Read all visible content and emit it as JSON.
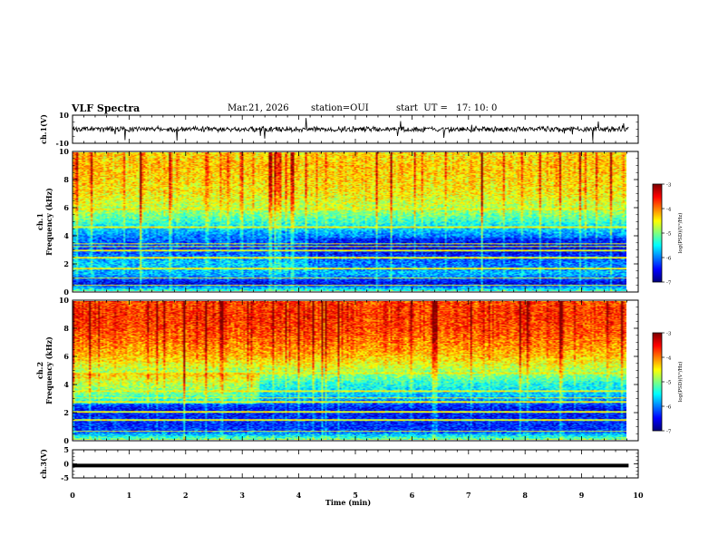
{
  "header": {
    "title": "VLF Spectra",
    "date": "Mar.21, 2026",
    "station": "station=OUI",
    "start_ut": "start  UT =   17: 10: 0"
  },
  "chart_data": [
    {
      "type": "line",
      "panel": "ch1-waveform",
      "ylabel": "ch.1(V)",
      "ylim": [
        -10,
        10
      ],
      "y_ticks": [
        "10",
        "-10"
      ],
      "x_range_min": [
        0,
        9.83
      ],
      "trace": "noise waveform centered near 0 V, amplitude about +/-2 V with sparse spikes",
      "color": "#000000"
    },
    {
      "type": "heatmap",
      "panel": "ch1-spectrogram",
      "ylabel": "Frequency (kHz)",
      "channel_label": "ch.1",
      "ylim": [
        0,
        10
      ],
      "y_ticks": [
        "0",
        "2",
        "4",
        "6",
        "8",
        "10"
      ],
      "x_range_min": [
        0,
        9.83
      ],
      "colorbar": {
        "label": "log(PSD)(V²/Hz)",
        "ticks": [
          "-3",
          "-4",
          "-5",
          "-6",
          "-7"
        ],
        "range": [
          -7,
          -3
        ]
      },
      "level_profile": [
        {
          "f_khz": 0.0,
          "log_psd": -5.3
        },
        {
          "f_khz": 0.5,
          "log_psd": -6.6
        },
        {
          "f_khz": 1.2,
          "log_psd": -5.8
        },
        {
          "f_khz": 2.0,
          "log_psd": -5.7
        },
        {
          "f_khz": 3.0,
          "log_psd": -6.3
        },
        {
          "f_khz": 4.0,
          "log_psd": -6.0
        },
        {
          "f_khz": 5.0,
          "log_psd": -5.3
        },
        {
          "f_khz": 6.0,
          "log_psd": -4.8
        },
        {
          "f_khz": 7.0,
          "log_psd": -4.5
        },
        {
          "f_khz": 8.0,
          "log_psd": -4.4
        },
        {
          "f_khz": 9.0,
          "log_psd": -4.3
        },
        {
          "f_khz": 10.0,
          "log_psd": -4.4
        }
      ],
      "lines_khz": [
        0.4,
        0.9,
        1.6,
        2.4,
        2.9,
        3.2,
        3.4,
        4.6,
        5.9
      ]
    },
    {
      "type": "heatmap",
      "panel": "ch2-spectrogram",
      "ylabel": "Frequency (kHz)",
      "channel_label": "ch.2",
      "ylim": [
        0,
        10
      ],
      "y_ticks": [
        "0",
        "2",
        "4",
        "6",
        "8",
        "10"
      ],
      "x_range_min": [
        0,
        9.83
      ],
      "colorbar": {
        "label": "log(PSD)(V²/Hz)",
        "ticks": [
          "-3",
          "-4",
          "-5",
          "-6",
          "-7"
        ],
        "range": [
          -7,
          -3
        ]
      },
      "level_profile": [
        {
          "f_khz": 0.0,
          "log_psd": -5.0
        },
        {
          "f_khz": 0.6,
          "log_psd": -6.3
        },
        {
          "f_khz": 1.5,
          "log_psd": -6.4
        },
        {
          "f_khz": 2.2,
          "log_psd": -6.5
        },
        {
          "f_khz": 3.0,
          "log_psd": -5.8
        },
        {
          "f_khz": 4.0,
          "log_psd": -5.4
        },
        {
          "f_khz": 5.0,
          "log_psd": -4.8
        },
        {
          "f_khz": 6.0,
          "log_psd": -4.3
        },
        {
          "f_khz": 7.0,
          "log_psd": -4.0
        },
        {
          "f_khz": 8.0,
          "log_psd": -3.8
        },
        {
          "f_khz": 9.0,
          "log_psd": -3.7
        },
        {
          "f_khz": 10.0,
          "log_psd": -3.8
        }
      ],
      "lines_khz": [
        0.6,
        1.4,
        2.0,
        2.7,
        3.0,
        3.5,
        4.8
      ]
    },
    {
      "type": "line",
      "panel": "ch3-waveform",
      "ylabel": "ch.3(V)",
      "xlabel": "Time (min)",
      "ylim": [
        -5,
        5
      ],
      "y_ticks": [
        "5",
        "0",
        "-5"
      ],
      "x_range_min": [
        0,
        9.83
      ],
      "x_ticks": [
        "0",
        "1",
        "2",
        "3",
        "4",
        "5",
        "6",
        "7",
        "8",
        "9",
        "10"
      ],
      "level_v": -0.6,
      "color": "#000000"
    }
  ]
}
